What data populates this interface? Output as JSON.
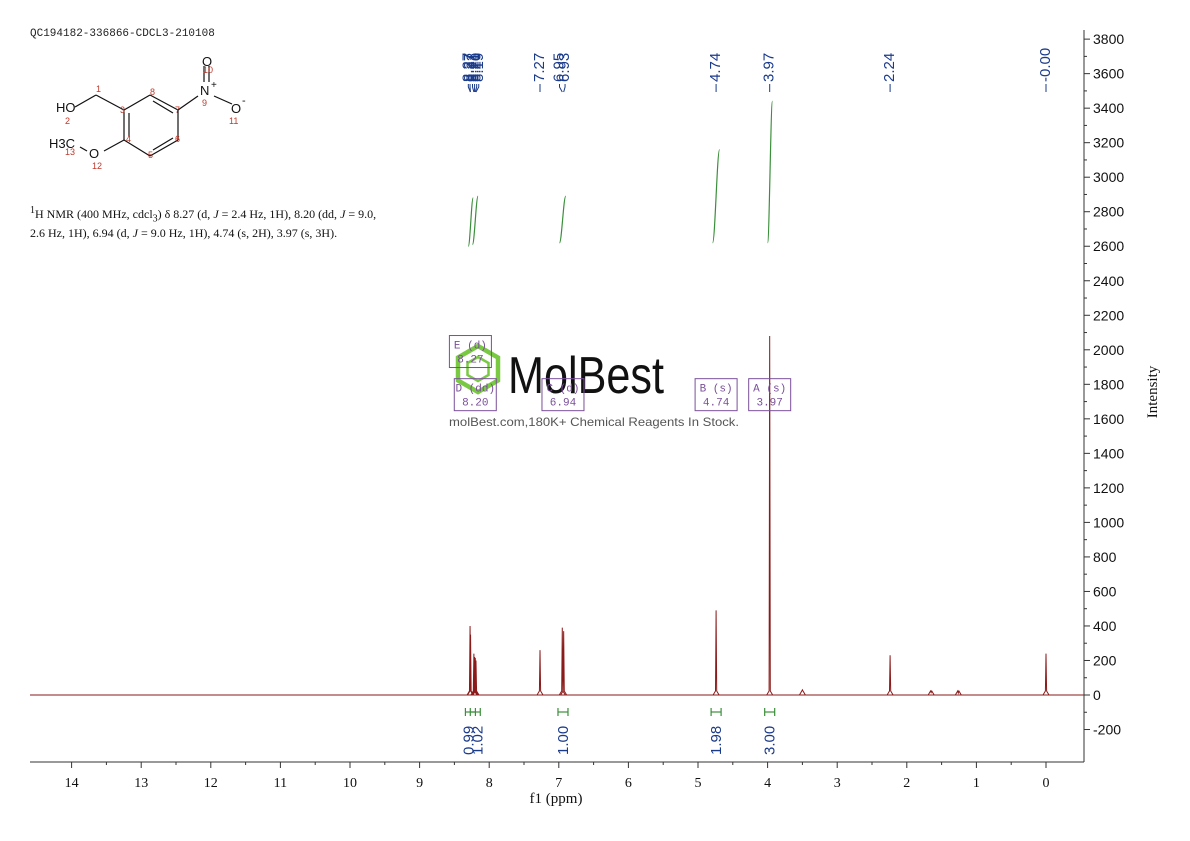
{
  "header": {
    "sample_id": "QC194182-336866-CDCL3-210108"
  },
  "structure": {
    "labels": {
      "ho": "HO",
      "methyl_h3c": "H3C",
      "oxygen_ether": "O",
      "nitrogen": "N",
      "n_charge": "+",
      "oxygen_nitro_top": "O",
      "oxygen_nitro_right": "O",
      "o_charge": "-"
    },
    "atom_numbers": [
      "1",
      "2",
      "3",
      "4",
      "5",
      "6",
      "7",
      "8",
      "9",
      "10",
      "11",
      "12",
      "13"
    ]
  },
  "nmr_text": {
    "sup": "1",
    "p1": "H NMR (400 MHz, cdcl",
    "sub3": "3",
    "p2": ") δ 8.27 (d, ",
    "j1": "J",
    "p3": " = 2.4 Hz, 1H), 8.20 (dd, ",
    "j2": "J",
    "p4": " = 9.0, 2.6 Hz, 1H), 6.94 (d, ",
    "j3": "J",
    "p5": " = 9.0 Hz, 1H), 4.74 (s, 2H), 3.97 (s, 3H)."
  },
  "watermark": {
    "logo_text": "MolBest",
    "tagline": "molBest.com,180K+ Chemical Reagents In Stock."
  },
  "chart_data": {
    "type": "line",
    "title": "",
    "xlabel": "f1 (ppm)",
    "ylabel": "Intensity",
    "xlim": [
      14.6,
      -0.5
    ],
    "ylim": [
      -300,
      3900
    ],
    "x_ticks": [
      14,
      13,
      12,
      11,
      10,
      9,
      8,
      7,
      6,
      5,
      4,
      3,
      2,
      1,
      0
    ],
    "y_ticks": [
      -200,
      0,
      200,
      400,
      600,
      800,
      1000,
      1200,
      1400,
      1600,
      1800,
      2000,
      2200,
      2400,
      2600,
      2800,
      3000,
      3200,
      3400,
      3600,
      3800
    ],
    "line_color": "#8b1a1a",
    "series": [
      {
        "peaks": [
          {
            "ppm": 8.275,
            "height": 400
          },
          {
            "ppm": 8.268,
            "height": 350
          },
          {
            "ppm": 8.22,
            "height": 240
          },
          {
            "ppm": 8.21,
            "height": 220
          },
          {
            "ppm": 8.2,
            "height": 215
          },
          {
            "ppm": 8.19,
            "height": 200
          },
          {
            "ppm": 7.27,
            "height": 260
          },
          {
            "ppm": 6.95,
            "height": 390
          },
          {
            "ppm": 6.93,
            "height": 370
          },
          {
            "ppm": 4.74,
            "height": 490
          },
          {
            "ppm": 3.97,
            "height": 2080
          },
          {
            "ppm": 3.5,
            "height": 30
          },
          {
            "ppm": 2.24,
            "height": 230
          },
          {
            "ppm": 1.65,
            "height": 15
          },
          {
            "ppm": 1.26,
            "height": 12
          },
          {
            "ppm": 0.0,
            "height": 240
          }
        ]
      }
    ],
    "peak_labels": [
      "8.27",
      "8.27",
      "8.22",
      "8.21",
      "8.20",
      "8.19",
      "7.27",
      "6.95",
      "6.93",
      "4.74",
      "3.97",
      "2.24",
      "-0.00"
    ],
    "peak_label_positions": [
      8.3,
      8.275,
      8.24,
      8.21,
      8.18,
      8.15,
      7.27,
      6.99,
      6.91,
      4.74,
      3.97,
      2.24,
      0.0
    ],
    "integration_curves": [
      {
        "ppm_from": 8.3,
        "ppm_to": 8.23,
        "y_from": 2600,
        "y_to": 2880
      },
      {
        "ppm_from": 8.24,
        "ppm_to": 8.16,
        "y_from": 2610,
        "y_to": 2890
      },
      {
        "ppm_from": 6.99,
        "ppm_to": 6.9,
        "y_from": 2620,
        "y_to": 2890
      },
      {
        "ppm_from": 4.79,
        "ppm_to": 4.69,
        "y_from": 2620,
        "y_to": 3160
      },
      {
        "ppm_from": 4.0,
        "ppm_to": 3.93,
        "y_from": 2620,
        "y_to": 3440
      }
    ],
    "integrals": [
      {
        "ppm": 8.27,
        "value": "0.99"
      },
      {
        "ppm": 8.2,
        "value": "1.02"
      },
      {
        "ppm": 6.94,
        "value": "1.00"
      },
      {
        "ppm": 4.74,
        "value": "1.98"
      },
      {
        "ppm": 3.97,
        "value": "3.00"
      }
    ],
    "multiplet_boxes": [
      {
        "label": "E (d)",
        "shift": "8.27",
        "ppm": 8.27,
        "y": 1990
      },
      {
        "label": "D (dd)",
        "shift": "8.20",
        "ppm": 8.2,
        "y": 1740
      },
      {
        "label": "C (d)",
        "shift": "6.94",
        "ppm": 6.94,
        "y": 1740
      },
      {
        "label": "B (s)",
        "shift": "4.74",
        "ppm": 4.74,
        "y": 1740
      },
      {
        "label": "A (s)",
        "shift": "3.97",
        "ppm": 3.97,
        "y": 1740
      }
    ]
  }
}
